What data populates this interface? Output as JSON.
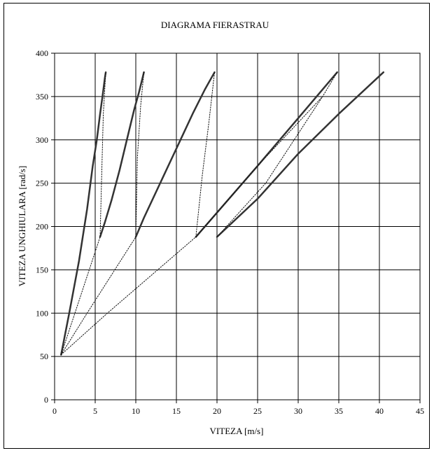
{
  "chart_data": {
    "type": "line",
    "title": "DIAGRAMA FIERASTRAU",
    "xlabel": "VITEZA [m/s]",
    "ylabel": "VITEZA UNGHIULARA [rad/s]",
    "xlim": [
      0,
      45
    ],
    "ylim": [
      0,
      400
    ],
    "xticks": [
      0,
      5,
      10,
      15,
      20,
      25,
      30,
      35,
      40,
      45
    ],
    "yticks": [
      0,
      50,
      100,
      150,
      200,
      250,
      300,
      350,
      400
    ],
    "grid": true,
    "legend": "none",
    "series": [
      {
        "style": "solid",
        "points": [
          [
            0.8,
            52
          ],
          [
            1.8,
            100
          ],
          [
            3.0,
            160
          ],
          [
            4.0,
            220
          ],
          [
            4.7,
            270
          ],
          [
            5.2,
            300
          ],
          [
            5.6,
            330
          ],
          [
            5.9,
            350
          ],
          [
            6.2,
            372
          ],
          [
            6.3,
            378
          ]
        ]
      },
      {
        "style": "solid",
        "points": [
          [
            5.6,
            188
          ],
          [
            6.2,
            205
          ],
          [
            7.0,
            230
          ],
          [
            8.0,
            265
          ],
          [
            8.9,
            300
          ],
          [
            9.8,
            335
          ],
          [
            10.4,
            355
          ],
          [
            11.0,
            378
          ]
        ]
      },
      {
        "style": "solid",
        "points": [
          [
            10.0,
            188
          ],
          [
            11.0,
            210
          ],
          [
            12.5,
            240
          ],
          [
            14.0,
            270
          ],
          [
            15.5,
            300
          ],
          [
            17.0,
            330
          ],
          [
            18.5,
            358
          ],
          [
            19.7,
            378
          ]
        ]
      },
      {
        "style": "solid",
        "points": [
          [
            17.4,
            188
          ],
          [
            20.0,
            216
          ],
          [
            25.0,
            270
          ],
          [
            30.0,
            325
          ],
          [
            34.8,
            378
          ]
        ]
      },
      {
        "style": "solid",
        "points": [
          [
            20.0,
            188
          ],
          [
            25.0,
            232
          ],
          [
            30.0,
            284
          ],
          [
            35.0,
            330
          ],
          [
            40.5,
            378
          ]
        ]
      },
      {
        "style": "dotted",
        "points": [
          [
            0.8,
            52
          ],
          [
            2.5,
            100
          ],
          [
            5.6,
            188
          ],
          [
            5.8,
            260
          ],
          [
            6.0,
            330
          ],
          [
            6.3,
            378
          ]
        ]
      },
      {
        "style": "dotted",
        "points": [
          [
            0.8,
            52
          ],
          [
            4.0,
            100
          ],
          [
            10.0,
            188
          ],
          [
            10.2,
            280
          ],
          [
            10.6,
            340
          ],
          [
            11.0,
            378
          ]
        ]
      },
      {
        "style": "dotted",
        "points": [
          [
            0.8,
            52
          ],
          [
            6.5,
            100
          ],
          [
            17.4,
            188
          ],
          [
            18.2,
            260
          ],
          [
            19.0,
            320
          ],
          [
            19.7,
            378
          ]
        ]
      },
      {
        "style": "dotted",
        "points": [
          [
            17.4,
            188
          ],
          [
            25.0,
            270
          ],
          [
            33.0,
            350
          ],
          [
            34.8,
            378
          ]
        ]
      },
      {
        "style": "dotted",
        "points": [
          [
            20.0,
            188
          ],
          [
            26.0,
            250
          ],
          [
            33.0,
            350
          ]
        ]
      }
    ]
  }
}
